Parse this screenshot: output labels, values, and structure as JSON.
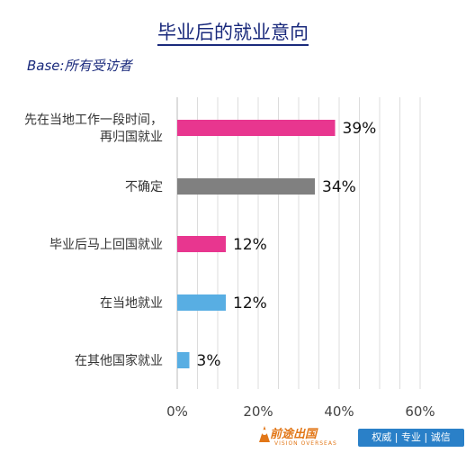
{
  "title": "毕业后的就业意向",
  "base_note": "Base:所有受访者",
  "chart_data": {
    "type": "bar",
    "orientation": "horizontal",
    "categories": [
      [
        "先在当地工作一段时间，",
        "再归国就业"
      ],
      [
        "不确定"
      ],
      [
        "毕业后马上回国就业"
      ],
      [
        "在当地就业"
      ],
      [
        "在其他国家就业"
      ]
    ],
    "values": [
      39,
      34,
      12,
      12,
      3
    ],
    "value_labels": [
      "39%",
      "34%",
      "12%",
      "12%",
      "3%"
    ],
    "colors": [
      "#e8368f",
      "#808080",
      "#e8368f",
      "#58aee3",
      "#58aee3"
    ],
    "xlim": [
      0,
      60
    ],
    "xticks": [
      0,
      20,
      40,
      60
    ],
    "xtick_labels": [
      "0%",
      "20%",
      "40%",
      "60%"
    ],
    "grid": true
  },
  "footer": {
    "brand": "前途出国",
    "brand_sub": "VISION OVERSEAS",
    "tagline": "权威 | 专业 | 诚信"
  }
}
